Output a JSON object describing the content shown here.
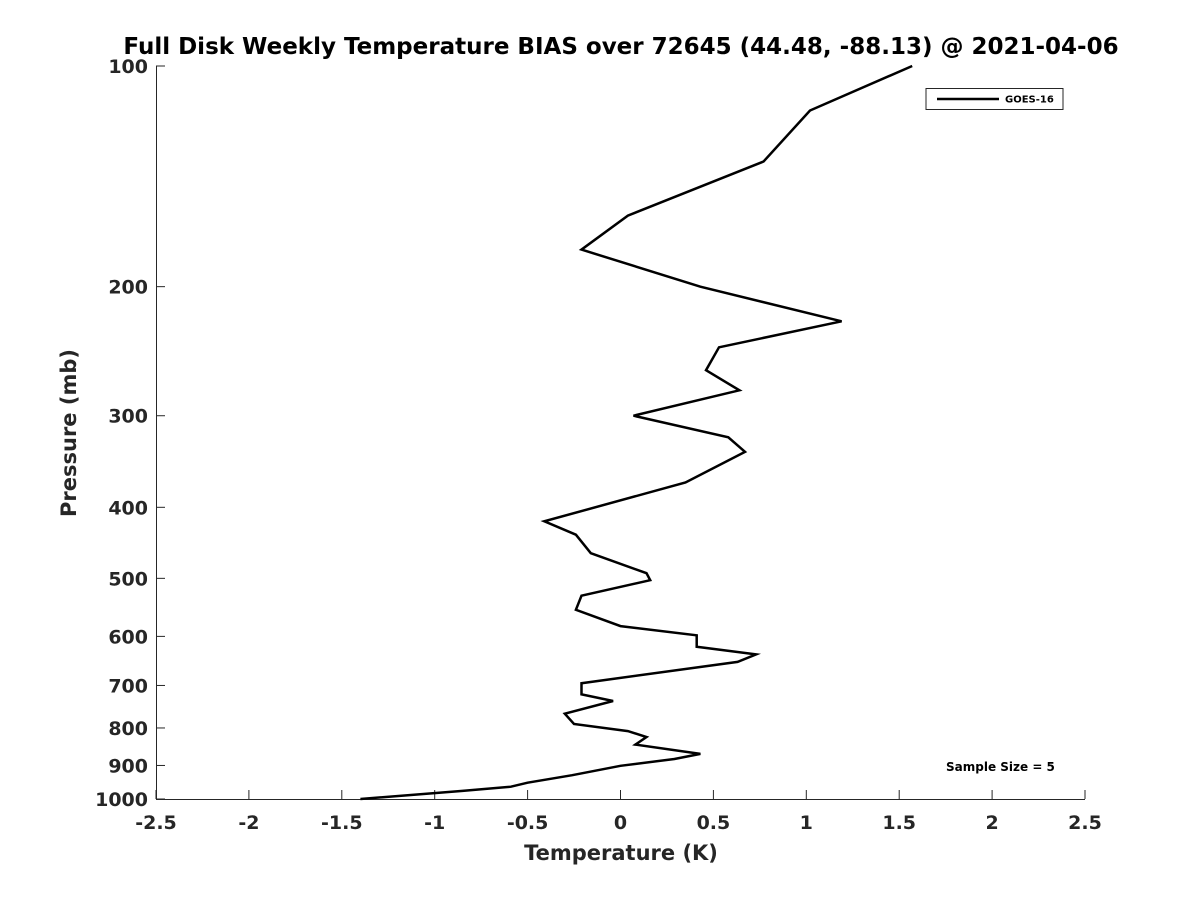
{
  "chart_data": {
    "type": "line",
    "title": "Full Disk Weekly Temperature BIAS over 72645 (44.48, -88.13) @ 2021-04-06",
    "xlabel": "Temperature (K)",
    "ylabel": "Pressure (mb)",
    "xlim": [
      -2.5,
      2.5
    ],
    "ylim": [
      1000,
      100
    ],
    "yscale": "log",
    "y_reversed": true,
    "grid": false,
    "legend_position": "top-right",
    "x_ticks": [
      "-2.5",
      "-2",
      "-1.5",
      "-1",
      "-0.5",
      "0",
      "0.5",
      "1",
      "1.5",
      "2",
      "2.5"
    ],
    "y_ticks": [
      "100",
      "200",
      "300",
      "400",
      "500",
      "600",
      "700",
      "800",
      "900",
      "1000"
    ],
    "annotation": "Sample Size = 5",
    "series": [
      {
        "name": "GOES-16",
        "color": "#000000",
        "points": [
          [
            1.57,
            100
          ],
          [
            1.02,
            115
          ],
          [
            0.77,
            135
          ],
          [
            0.04,
            160
          ],
          [
            -0.21,
            178
          ],
          [
            0.43,
            200
          ],
          [
            1.19,
            223
          ],
          [
            0.53,
            242
          ],
          [
            0.46,
            260
          ],
          [
            0.64,
            277
          ],
          [
            0.07,
            300
          ],
          [
            0.58,
            321
          ],
          [
            0.67,
            336
          ],
          [
            0.35,
            370
          ],
          [
            -0.41,
            418
          ],
          [
            -0.24,
            436
          ],
          [
            -0.16,
            462
          ],
          [
            0.14,
            492
          ],
          [
            0.16,
            503
          ],
          [
            -0.21,
            528
          ],
          [
            -0.24,
            552
          ],
          [
            0.0,
            581
          ],
          [
            0.41,
            598
          ],
          [
            0.41,
            620
          ],
          [
            0.73,
            635
          ],
          [
            0.63,
            650
          ],
          [
            -0.21,
            695
          ],
          [
            -0.21,
            720
          ],
          [
            -0.04,
            735
          ],
          [
            -0.3,
            765
          ],
          [
            -0.25,
            790
          ],
          [
            0.04,
            808
          ],
          [
            0.14,
            823
          ],
          [
            0.08,
            843
          ],
          [
            0.43,
            868
          ],
          [
            0.29,
            882
          ],
          [
            0.0,
            901
          ],
          [
            -0.26,
            928
          ],
          [
            -0.5,
            950
          ],
          [
            -0.59,
            962
          ],
          [
            -0.85,
            975
          ],
          [
            -1.4,
            1000
          ]
        ]
      }
    ]
  }
}
